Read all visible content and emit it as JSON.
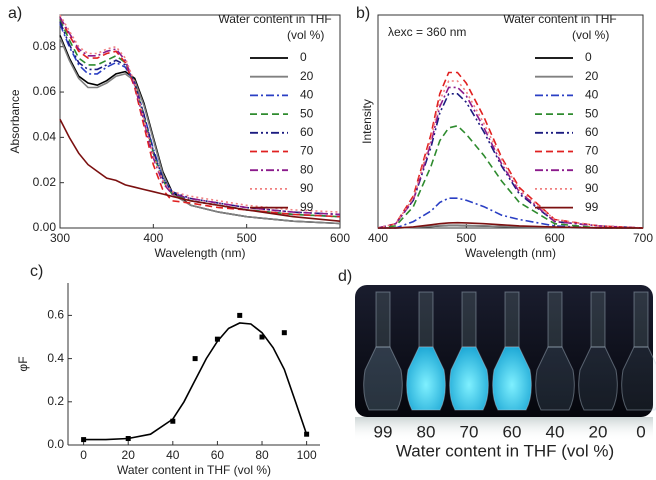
{
  "chart_data": [
    {
      "type": "line",
      "panel": "a)",
      "xlabel": "Wavelength (nm)",
      "ylabel": "Absorbance",
      "xlim": [
        300,
        600
      ],
      "xticks": [
        300,
        400,
        500,
        600
      ],
      "ylim": [
        0,
        0.094
      ],
      "yticks": [
        {
          "value": 0,
          "label": "0.00"
        },
        0.02,
        0.04,
        0.06,
        0.08
      ],
      "frame": true,
      "legend_title": [
        "Water content in THF",
        "(vol %)"
      ],
      "x": [
        300,
        310,
        320,
        330,
        340,
        350,
        360,
        370,
        380,
        390,
        400,
        410,
        420,
        440,
        470,
        500,
        550,
        600
      ],
      "series": [
        {
          "name": "0",
          "color": "#000000",
          "dash": "solid",
          "values": [
            0.085,
            0.075,
            0.067,
            0.064,
            0.063,
            0.065,
            0.068,
            0.069,
            0.066,
            0.055,
            0.04,
            0.025,
            0.016,
            0.01,
            0.007,
            0.005,
            0.003,
            0.002
          ]
        },
        {
          "name": "20",
          "color": "#808080",
          "dash": "solid",
          "values": [
            0.084,
            0.074,
            0.066,
            0.062,
            0.062,
            0.064,
            0.067,
            0.068,
            0.065,
            0.054,
            0.039,
            0.024,
            0.015,
            0.01,
            0.007,
            0.005,
            0.003,
            0.002
          ]
        },
        {
          "name": "40",
          "color": "#2a3fc4",
          "dash": "dashdot",
          "values": [
            0.09,
            0.08,
            0.072,
            0.068,
            0.068,
            0.071,
            0.073,
            0.071,
            0.064,
            0.05,
            0.035,
            0.022,
            0.016,
            0.012,
            0.01,
            0.008,
            0.006,
            0.005
          ]
        },
        {
          "name": "50",
          "color": "#2e8b2e",
          "dash": "dash",
          "values": [
            0.092,
            0.083,
            0.075,
            0.072,
            0.072,
            0.074,
            0.076,
            0.073,
            0.064,
            0.049,
            0.033,
            0.021,
            0.015,
            0.012,
            0.01,
            0.008,
            0.006,
            0.005
          ]
        },
        {
          "name": "60",
          "color": "#1c1c80",
          "dash": "dashdotdot",
          "values": [
            0.091,
            0.081,
            0.073,
            0.07,
            0.07,
            0.072,
            0.074,
            0.072,
            0.064,
            0.05,
            0.034,
            0.022,
            0.016,
            0.013,
            0.011,
            0.009,
            0.007,
            0.006
          ]
        },
        {
          "name": "70",
          "color": "#e02020",
          "dash": "dash",
          "values": [
            0.093,
            0.085,
            0.078,
            0.075,
            0.075,
            0.077,
            0.078,
            0.073,
            0.062,
            0.045,
            0.028,
            0.017,
            0.012,
            0.011,
            0.009,
            0.008,
            0.006,
            0.005
          ]
        },
        {
          "name": "80",
          "color": "#8b1a8b",
          "dash": "dashdot",
          "values": [
            0.093,
            0.086,
            0.079,
            0.076,
            0.076,
            0.078,
            0.079,
            0.074,
            0.063,
            0.047,
            0.031,
            0.02,
            0.015,
            0.013,
            0.011,
            0.009,
            0.007,
            0.006
          ]
        },
        {
          "name": "90",
          "color": "#f08080",
          "dash": "dot",
          "values": [
            0.094,
            0.087,
            0.08,
            0.077,
            0.077,
            0.079,
            0.08,
            0.075,
            0.064,
            0.048,
            0.032,
            0.021,
            0.016,
            0.014,
            0.012,
            0.01,
            0.008,
            0.007
          ]
        },
        {
          "name": "99",
          "color": "#7b1010",
          "dash": "solid",
          "values": [
            0.048,
            0.04,
            0.033,
            0.028,
            0.025,
            0.022,
            0.021,
            0.019,
            0.018,
            0.017,
            0.016,
            0.015,
            0.014,
            0.012,
            0.01,
            0.008,
            0.005,
            0.003
          ]
        }
      ]
    },
    {
      "type": "line",
      "panel": "b)",
      "xlabel": "Wavelength (nm)",
      "ylabel": "Intensity",
      "annotation": "λexc = 360 nm",
      "xlim": [
        400,
        700
      ],
      "xticks": [
        400,
        500,
        600,
        700
      ],
      "ylim": [
        0,
        1
      ],
      "frame": true,
      "legend_title": [
        "Water content in THF",
        "(vol %)"
      ],
      "x": [
        400,
        420,
        440,
        460,
        470,
        480,
        490,
        500,
        520,
        540,
        560,
        600,
        650,
        700
      ],
      "series": [
        {
          "name": "0",
          "color": "#000000",
          "dash": "solid",
          "values": [
            0,
            0,
            0.003,
            0.007,
            0.01,
            0.012,
            0.012,
            0.011,
            0.009,
            0.007,
            0.005,
            0.002,
            0,
            0
          ]
        },
        {
          "name": "20",
          "color": "#808080",
          "dash": "solid",
          "values": [
            0,
            0,
            0.003,
            0.008,
            0.011,
            0.013,
            0.013,
            0.012,
            0.01,
            0.007,
            0.005,
            0.002,
            0,
            0
          ]
        },
        {
          "name": "40",
          "color": "#2a3fc4",
          "dash": "dashdot",
          "values": [
            0,
            0,
            0.03,
            0.08,
            0.12,
            0.14,
            0.14,
            0.13,
            0.1,
            0.06,
            0.04,
            0.01,
            0,
            0
          ]
        },
        {
          "name": "50",
          "color": "#2e8b2e",
          "dash": "dash",
          "values": [
            0,
            0.01,
            0.1,
            0.29,
            0.41,
            0.47,
            0.48,
            0.44,
            0.34,
            0.22,
            0.12,
            0.02,
            0,
            0
          ]
        },
        {
          "name": "60",
          "color": "#1c1c80",
          "dash": "dashdotdot",
          "values": [
            0,
            0.02,
            0.13,
            0.38,
            0.54,
            0.63,
            0.63,
            0.59,
            0.45,
            0.29,
            0.16,
            0.03,
            0.01,
            0
          ]
        },
        {
          "name": "70",
          "color": "#e02020",
          "dash": "dash",
          "values": [
            0,
            0.02,
            0.15,
            0.44,
            0.63,
            0.73,
            0.73,
            0.68,
            0.52,
            0.33,
            0.19,
            0.04,
            0.01,
            0
          ]
        },
        {
          "name": "80",
          "color": "#8b1a8b",
          "dash": "dashdot",
          "values": [
            0,
            0.02,
            0.13,
            0.4,
            0.57,
            0.66,
            0.66,
            0.62,
            0.47,
            0.3,
            0.17,
            0.03,
            0.01,
            0
          ]
        },
        {
          "name": "90",
          "color": "#f08080",
          "dash": "dot",
          "values": [
            0,
            0.02,
            0.14,
            0.42,
            0.6,
            0.69,
            0.69,
            0.64,
            0.49,
            0.32,
            0.18,
            0.04,
            0.01,
            0
          ]
        },
        {
          "name": "99",
          "color": "#7b1010",
          "dash": "solid",
          "values": [
            0,
            0,
            0.005,
            0.015,
            0.02,
            0.024,
            0.025,
            0.024,
            0.02,
            0.015,
            0.01,
            0.004,
            0.001,
            0
          ]
        }
      ]
    },
    {
      "type": "scatter",
      "panel": "c)",
      "xlabel": "Water content in THF (vol %)",
      "ylabel": "φF",
      "xlim": [
        -7,
        106
      ],
      "xticks": [
        0,
        20,
        40,
        60,
        80,
        100
      ],
      "ylim": [
        0,
        0.75
      ],
      "yticks": [
        {
          "value": 0,
          "label": "0.0"
        },
        0.2,
        0.4,
        0.6
      ],
      "frame": false,
      "series": [
        {
          "mode": "markers",
          "color": "#000000",
          "x": [
            0,
            20,
            40,
            50,
            60,
            70,
            80,
            90,
            100
          ],
          "values": [
            0.025,
            0.03,
            0.11,
            0.4,
            0.49,
            0.6,
            0.5,
            0.52,
            0.05
          ]
        },
        {
          "mode": "lines",
          "color": "#000000",
          "x": [
            0,
            10,
            20,
            30,
            40,
            45,
            50,
            55,
            60,
            65,
            70,
            75,
            80,
            85,
            90,
            95,
            100
          ],
          "values": [
            0.025,
            0.025,
            0.03,
            0.05,
            0.12,
            0.2,
            0.3,
            0.4,
            0.48,
            0.54,
            0.565,
            0.56,
            0.52,
            0.45,
            0.35,
            0.2,
            0.05
          ]
        }
      ]
    }
  ],
  "photo": {
    "panel": "d)",
    "labels": [
      99,
      80,
      70,
      60,
      40,
      20,
      0
    ],
    "caption": "Water content in THF (vol %)"
  }
}
